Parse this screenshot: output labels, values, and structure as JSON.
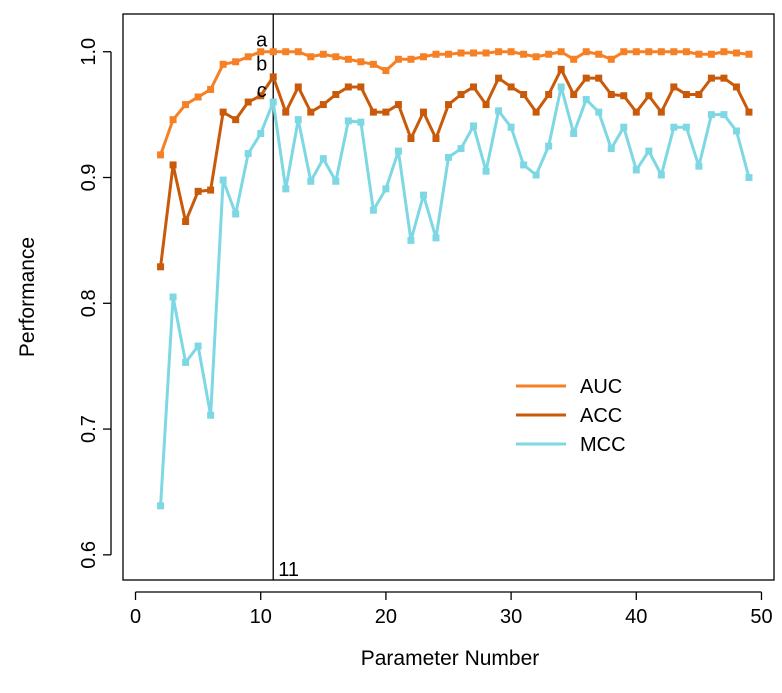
{
  "chart_data": {
    "type": "line",
    "xlabel": "Parameter Number",
    "ylabel": "Performance",
    "xlim": [
      -1,
      51
    ],
    "ylim": [
      0.58,
      1.03
    ],
    "xticks": [
      0,
      10,
      20,
      30,
      40,
      50
    ],
    "yticks": [
      0.6,
      0.7,
      0.8,
      0.9,
      1.0
    ],
    "xtick_labels": [
      "0",
      "10",
      "20",
      "30",
      "40",
      "50"
    ],
    "ytick_labels": [
      "0.6",
      "0.7",
      "0.8",
      "0.9",
      "1.0"
    ],
    "grid": false,
    "legend_position": "right",
    "x": [
      2,
      3,
      4,
      5,
      6,
      7,
      8,
      9,
      10,
      11,
      12,
      13,
      14,
      15,
      16,
      17,
      18,
      19,
      20,
      21,
      22,
      23,
      24,
      25,
      26,
      27,
      28,
      29,
      30,
      31,
      32,
      33,
      34,
      35,
      36,
      37,
      38,
      39,
      40,
      41,
      42,
      43,
      44,
      45,
      46,
      47,
      48,
      49
    ],
    "series": [
      {
        "name": "AUC",
        "color": "#F58025",
        "values": [
          0.918,
          0.946,
          0.958,
          0.964,
          0.97,
          0.99,
          0.992,
          0.996,
          1.0,
          1.0,
          1.0,
          1.0,
          0.996,
          0.998,
          0.996,
          0.994,
          0.992,
          0.99,
          0.985,
          0.994,
          0.994,
          0.996,
          0.998,
          0.998,
          0.999,
          0.999,
          0.999,
          1.0,
          1.0,
          0.998,
          0.996,
          0.998,
          1.0,
          0.994,
          1.0,
          0.998,
          0.994,
          1.0,
          1.0,
          1.0,
          1.0,
          1.0,
          1.0,
          0.998,
          0.998,
          1.0,
          0.999,
          0.998
        ]
      },
      {
        "name": "ACC",
        "color": "#C85A0A",
        "values": [
          0.829,
          0.91,
          0.865,
          0.889,
          0.89,
          0.952,
          0.946,
          0.96,
          0.965,
          0.98,
          0.952,
          0.972,
          0.952,
          0.958,
          0.966,
          0.972,
          0.972,
          0.952,
          0.952,
          0.958,
          0.931,
          0.952,
          0.931,
          0.958,
          0.966,
          0.972,
          0.958,
          0.979,
          0.972,
          0.966,
          0.952,
          0.966,
          0.986,
          0.966,
          0.979,
          0.979,
          0.966,
          0.965,
          0.952,
          0.965,
          0.952,
          0.972,
          0.966,
          0.966,
          0.979,
          0.979,
          0.972,
          0.952
        ]
      },
      {
        "name": "MCC",
        "color": "#7ED8E4",
        "values": [
          0.639,
          0.805,
          0.753,
          0.766,
          0.711,
          0.898,
          0.871,
          0.919,
          0.935,
          0.96,
          0.891,
          0.946,
          0.897,
          0.915,
          0.897,
          0.945,
          0.944,
          0.874,
          0.891,
          0.921,
          0.85,
          0.886,
          0.852,
          0.916,
          0.923,
          0.941,
          0.905,
          0.953,
          0.94,
          0.91,
          0.902,
          0.925,
          0.972,
          0.935,
          0.962,
          0.952,
          0.923,
          0.94,
          0.906,
          0.921,
          0.902,
          0.94,
          0.94,
          0.909,
          0.95,
          0.95,
          0.937,
          0.9
        ]
      }
    ],
    "vline": {
      "x": 11,
      "label": "11"
    },
    "annotations": [
      {
        "text": "a",
        "x": 10,
        "y": 1.001
      },
      {
        "text": "b",
        "x": 10,
        "y": 0.982
      },
      {
        "text": "c",
        "x": 10,
        "y": 0.961
      }
    ]
  }
}
